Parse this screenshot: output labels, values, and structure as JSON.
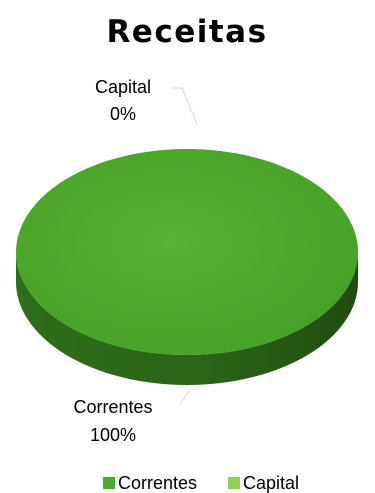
{
  "chart_data": {
    "type": "pie",
    "style": "3d",
    "title": "Receitas",
    "slices": [
      {
        "name": "Correntes",
        "value": 100,
        "label": "Correntes",
        "pct_label": "100%",
        "color": "#4ea72e"
      },
      {
        "name": "Capital",
        "value": 0,
        "label": "Capital",
        "pct_label": "0%",
        "color": "#92d050"
      }
    ],
    "legend": {
      "position": "bottom",
      "entries": [
        "Correntes",
        "Capital"
      ]
    }
  }
}
